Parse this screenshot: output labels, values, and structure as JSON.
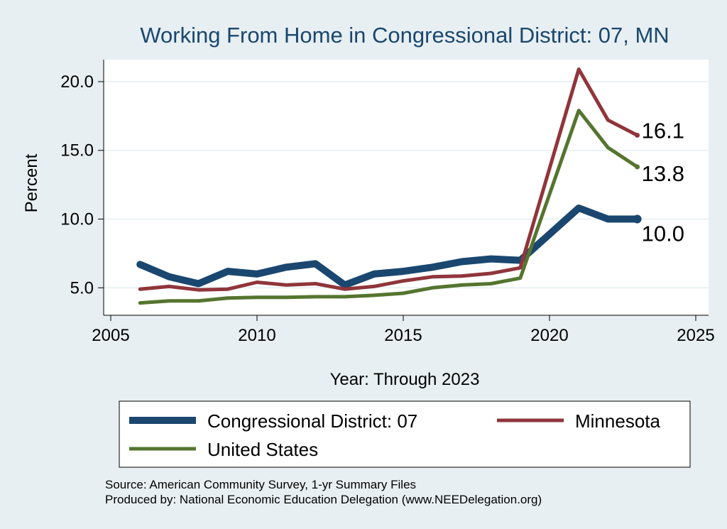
{
  "chart_data": {
    "type": "line",
    "title": "Working From Home in Congressional District: 07, MN",
    "xlabel": "Year: Through 2023",
    "ylabel": "Percent",
    "xlim": [
      2005,
      2025
    ],
    "ylim": [
      3.0,
      21.6
    ],
    "xticks": [
      "2005",
      "2010",
      "2015",
      "2020",
      "2025"
    ],
    "yticks": [
      "5.0",
      "10.0",
      "15.0",
      "20.0"
    ],
    "grid": true,
    "legend_position": "bottom",
    "x": [
      2006,
      2007,
      2008,
      2009,
      2010,
      2011,
      2012,
      2013,
      2014,
      2015,
      2016,
      2017,
      2018,
      2019,
      2021,
      2022,
      2023
    ],
    "series": [
      {
        "name": "Congressional District: 07",
        "color": "#1a476f",
        "values": [
          6.7,
          5.8,
          5.3,
          6.2,
          6.0,
          6.5,
          6.75,
          5.2,
          6.0,
          6.2,
          6.5,
          6.9,
          7.1,
          7.0,
          10.8,
          10.0,
          10.0
        ],
        "end_label": "10.0"
      },
      {
        "name": "Minnesota",
        "color": "#90353b",
        "values": [
          4.9,
          5.1,
          4.85,
          4.9,
          5.4,
          5.2,
          5.3,
          4.9,
          5.1,
          5.5,
          5.8,
          5.85,
          6.05,
          6.45,
          20.9,
          17.2,
          16.1
        ],
        "end_label": "16.1"
      },
      {
        "name": "United States",
        "color": "#55752f",
        "values": [
          3.9,
          4.05,
          4.05,
          4.25,
          4.3,
          4.3,
          4.35,
          4.35,
          4.45,
          4.6,
          5.0,
          5.2,
          5.3,
          5.7,
          17.9,
          15.2,
          13.8
        ],
        "end_label": "13.8"
      }
    ],
    "notes": [
      "Source: American Community Survey, 1-yr Summary Files",
      "Produced by: National Economic Education Delegation (www.NEEDelegation.org)"
    ]
  }
}
